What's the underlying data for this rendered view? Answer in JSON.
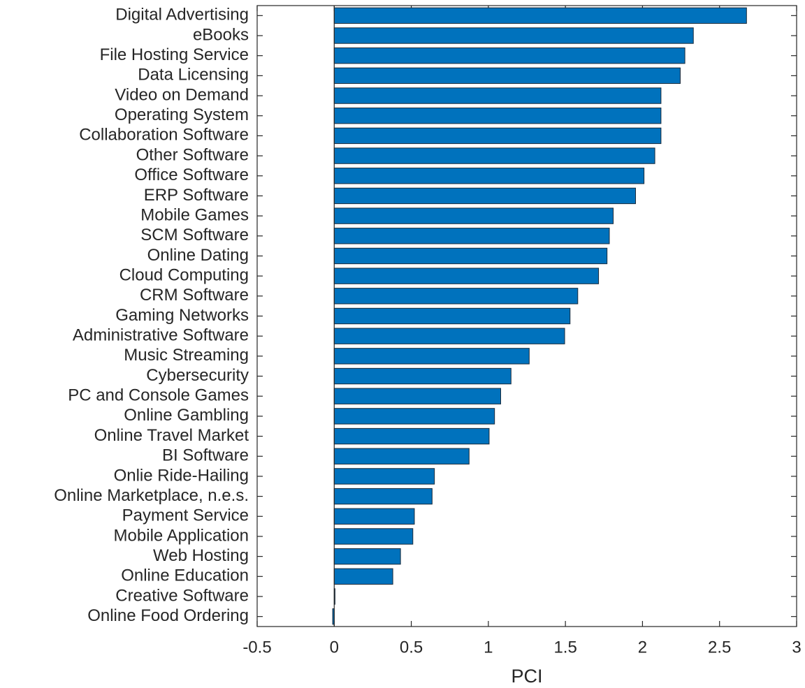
{
  "chart_data": {
    "type": "barh",
    "xlabel": "PCI",
    "categories": [
      "Digital Advertising",
      "eBooks",
      "File Hosting Service",
      "Data Licensing",
      "Video on Demand",
      "Operating System",
      "Collaboration Software",
      "Other Software",
      "Office Software",
      "ERP Software",
      "Mobile Games",
      "SCM Software",
      "Online Dating",
      "Cloud Computing",
      "CRM Software",
      "Gaming Networks",
      "Administrative Software",
      "Music Streaming",
      "Cybersecurity",
      "PC and Console Games",
      "Online Gambling",
      "Online Travel Market",
      "BI Software",
      "Onlie Ride-Hailing",
      "Online Marketplace, n.e.s.",
      "Payment Service",
      "Mobile Application",
      "Web Hosting",
      "Online Education",
      "Creative Software",
      "Online Food Ordering"
    ],
    "values": [
      2.675,
      2.33,
      2.275,
      2.245,
      2.12,
      2.12,
      2.12,
      2.08,
      2.01,
      1.955,
      1.81,
      1.785,
      1.77,
      1.715,
      1.58,
      1.53,
      1.495,
      1.265,
      1.147,
      1.08,
      1.04,
      1.005,
      0.875,
      0.65,
      0.635,
      0.52,
      0.51,
      0.43,
      0.38,
      0.005,
      -0.01
    ],
    "color": "#0072bd",
    "xlim": [
      -0.5,
      3
    ],
    "xticks": [
      -0.5,
      0,
      0.5,
      1,
      1.5,
      2,
      2.5,
      3
    ]
  }
}
